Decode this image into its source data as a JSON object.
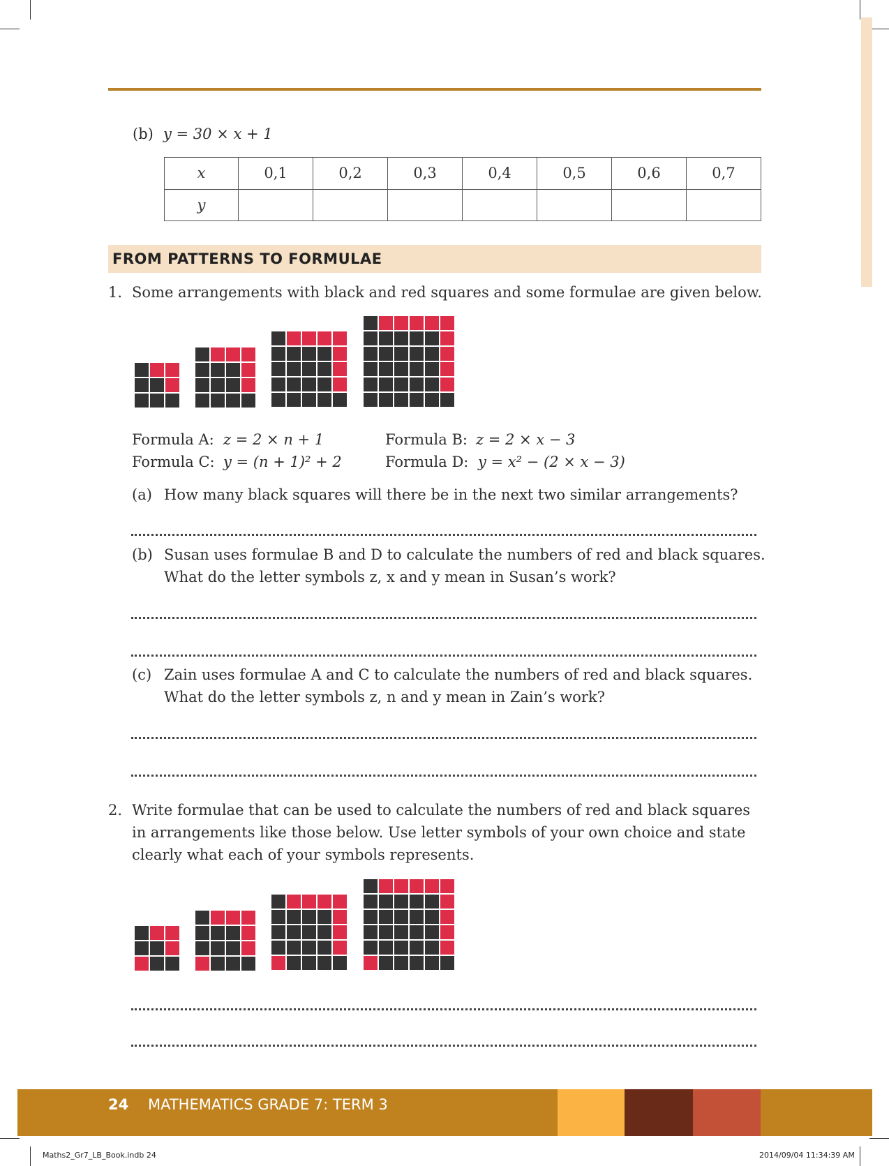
{
  "part_b": {
    "label": "(b)",
    "equation": "y = 30 × x + 1"
  },
  "table": {
    "row_x_label": "x",
    "row_y_label": "y",
    "x_values": [
      "0,1",
      "0,2",
      "0,3",
      "0,4",
      "0,5",
      "0,6",
      "0,7"
    ]
  },
  "section_heading": "FROM PATTERNS TO FORMULAE",
  "q1": {
    "number": "1.",
    "text": "Some arrangements with black and red squares and some formulae are given below.",
    "formula_a_label": "Formula A:",
    "formula_a": "z = 2 × n + 1",
    "formula_b_label": "Formula B:",
    "formula_b": "z = 2 × x − 3",
    "formula_c_label": "Formula C:",
    "formula_c": "y = (n + 1)² + 2",
    "formula_d_label": "Formula D:",
    "formula_d": "y = x² − (2 × x − 3)",
    "a_label": "(a)",
    "a_text": "How many black squares will there be in the next two similar arrangements?",
    "b_label": "(b)",
    "b_line1": "Susan uses formulae B and D to calculate the numbers of red and black squares.",
    "b_line2": "What do the letter symbols z, x and y mean in Susan’s work?",
    "c_label": "(c)",
    "c_line1": "Zain uses formulae A and C to calculate the numbers of red and black squares.",
    "c_line2": "What do the letter symbols z, n and y mean in Zain’s work?"
  },
  "q2": {
    "number": "2.",
    "line1": "Write formulae that can be used to calculate the numbers of red and black squares",
    "line2": "in arrangements like those below. Use letter symbols of your own choice and state",
    "line3": "clearly what each of your symbols represents."
  },
  "colors": {
    "red": "#dd2d48",
    "black": "#333333",
    "accent": "#c0821f",
    "heading_bg": "#f6e0c6"
  },
  "footer": {
    "page_number": "24",
    "title": "MATHEMATICS GRADE 7: TERM 3"
  },
  "slug": {
    "file": "Maths2_Gr7_LB_Book.indb   24",
    "timestamp": "2014/09/04   11:34:39 AM"
  }
}
